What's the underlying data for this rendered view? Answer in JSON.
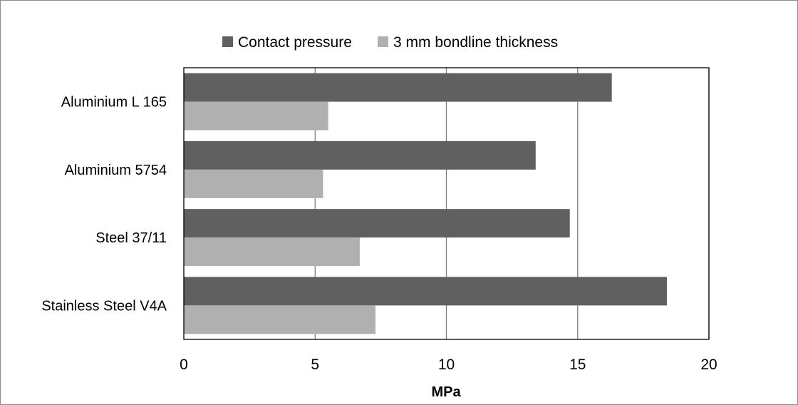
{
  "chart_data": {
    "type": "bar",
    "orientation": "horizontal",
    "categories": [
      "Aluminium L 165",
      "Aluminium 5754",
      "Steel 37/11",
      "Stainless Steel V4A"
    ],
    "series": [
      {
        "name": "Contact pressure",
        "color": "#606060",
        "values": [
          16.3,
          13.4,
          14.7,
          18.4
        ]
      },
      {
        "name": "3 mm bondline thickness",
        "color": "#b0b0b0",
        "values": [
          5.5,
          5.3,
          6.7,
          7.3
        ]
      }
    ],
    "xlabel": "MPa",
    "ylabel": "",
    "xlim": [
      0,
      20
    ],
    "xticks": [
      0,
      5,
      10,
      15,
      20
    ],
    "grid": "vertical",
    "legend_position": "top"
  }
}
